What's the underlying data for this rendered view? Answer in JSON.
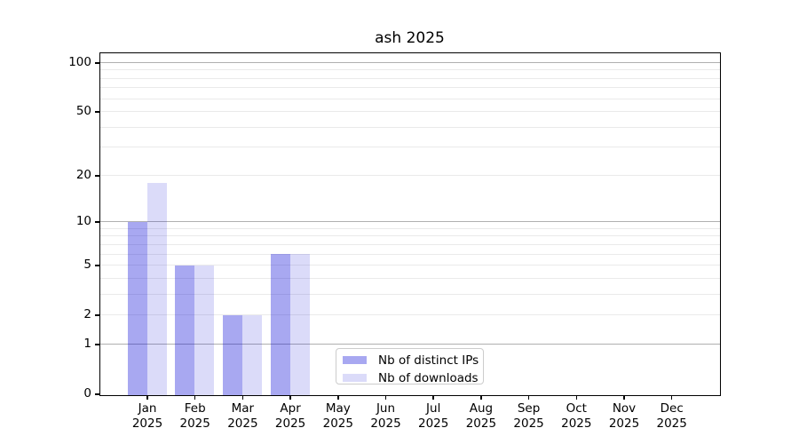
{
  "title": "ash 2025",
  "chart_data": {
    "type": "bar",
    "title": "ash 2025",
    "x_tick_months": [
      "Jan",
      "Feb",
      "Mar",
      "Apr",
      "May",
      "Jun",
      "Jul",
      "Aug",
      "Sep",
      "Oct",
      "Nov",
      "Dec"
    ],
    "x_tick_year": "2025",
    "categories": [
      "Jan 2025",
      "Feb 2025",
      "Mar 2025",
      "Apr 2025",
      "May 2025",
      "Jun 2025",
      "Jul 2025",
      "Aug 2025",
      "Sep 2025",
      "Oct 2025",
      "Nov 2025",
      "Dec 2025"
    ],
    "series": [
      {
        "name": "Nb of distinct IPs",
        "color": "rgba(0,0,215,0.34)",
        "values": [
          10,
          5,
          2,
          6,
          0,
          0,
          0,
          0,
          0,
          0,
          0,
          0
        ]
      },
      {
        "name": "Nb of downloads",
        "color": "rgba(0,0,215,0.14)",
        "values": [
          18,
          5,
          2,
          6,
          0,
          0,
          0,
          0,
          0,
          0,
          0,
          0
        ]
      }
    ],
    "xlabel": "",
    "ylabel": "",
    "yscale": "log10(value+1)",
    "ylim": [
      0,
      117
    ],
    "yticks_labeled": [
      0,
      1,
      2,
      5,
      10,
      20,
      50,
      100
    ],
    "grid": {
      "major": [
        1,
        10,
        100
      ],
      "minor": [
        2,
        3,
        4,
        5,
        6,
        7,
        8,
        9,
        20,
        30,
        40,
        50,
        60,
        70,
        80,
        90
      ]
    },
    "legend_position": "lower center"
  },
  "colors": {
    "bar_ips": "rgba(0,0,215,0.34)",
    "bar_downloads": "rgba(0,0,215,0.14)",
    "grid_major": "#b0b0b0",
    "grid_minor": "#eaeaea",
    "spine": "#000000",
    "text": "#000000",
    "legend_border": "#cccccc",
    "background": "#ffffff"
  }
}
